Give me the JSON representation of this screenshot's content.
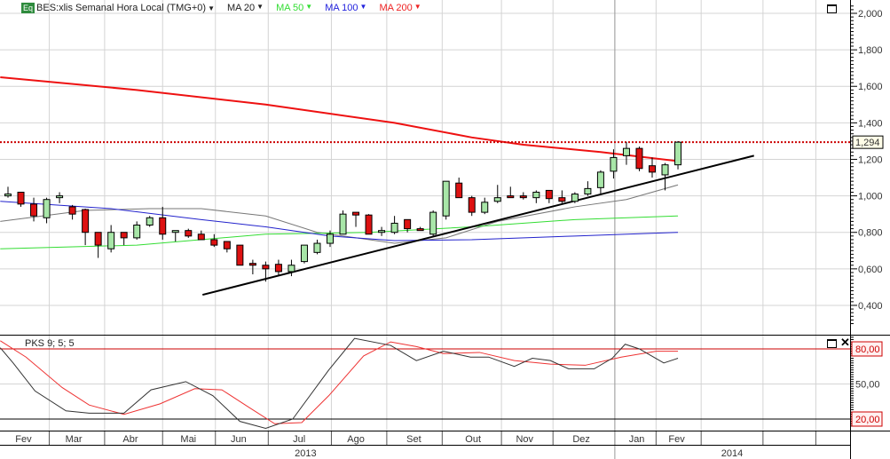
{
  "header": {
    "badge": "Eq",
    "instrument": "BES:xlis Semanal Hora Local (TMG+0)",
    "ma_labels": [
      {
        "label": "MA 20",
        "color": "#222222"
      },
      {
        "label": "MA 50",
        "color": "#33dd33"
      },
      {
        "label": "MA 100",
        "color": "#2222dd"
      },
      {
        "label": "MA 200",
        "color": "#ee2222"
      }
    ],
    "dropdown_glyph": "▼"
  },
  "indicator": {
    "label": "PKS 9; 5; 5"
  },
  "colors": {
    "up": "#a8e6a8",
    "down": "#dd1111",
    "ma20": "#777777",
    "ma50": "#33dd33",
    "ma100": "#2222cc",
    "ma200": "#ee1111",
    "trend": "#000000",
    "k_line": "#333333",
    "d_line": "#ee3333",
    "level": "#cc0000"
  },
  "chart_data": {
    "type": "candlestick",
    "title": "BES:xlis Semanal Hora Local (TMG+0)",
    "x_unit": "week index",
    "ylim": [
      0.3,
      2.07
    ],
    "y_ticks": [
      "0,400",
      "0,600",
      "0,800",
      "1,000",
      "1,200",
      "1,400",
      "1,600",
      "1,800",
      "2,000"
    ],
    "y_tick_values": [
      0.4,
      0.6,
      0.8,
      1.0,
      1.2,
      1.4,
      1.6,
      1.8,
      2.0
    ],
    "last_price": 1.294,
    "last_price_label": "1,294",
    "candles": [
      [
        1.0,
        1.05,
        0.99,
        1.01
      ],
      [
        1.02,
        1.02,
        0.94,
        0.955
      ],
      [
        0.955,
        0.99,
        0.86,
        0.89
      ],
      [
        0.88,
        0.99,
        0.85,
        0.98
      ],
      [
        0.99,
        1.02,
        0.96,
        1.0
      ],
      [
        0.94,
        0.95,
        0.87,
        0.9
      ],
      [
        0.925,
        0.93,
        0.73,
        0.8
      ],
      [
        0.8,
        0.8,
        0.66,
        0.73
      ],
      [
        0.71,
        0.84,
        0.69,
        0.8
      ],
      [
        0.8,
        0.8,
        0.73,
        0.77
      ],
      [
        0.77,
        0.86,
        0.76,
        0.84
      ],
      [
        0.84,
        0.89,
        0.83,
        0.88
      ],
      [
        0.88,
        0.94,
        0.76,
        0.79
      ],
      [
        0.8,
        0.81,
        0.75,
        0.81
      ],
      [
        0.81,
        0.82,
        0.77,
        0.78
      ],
      [
        0.79,
        0.81,
        0.76,
        0.76
      ],
      [
        0.76,
        0.79,
        0.72,
        0.73
      ],
      [
        0.75,
        0.75,
        0.69,
        0.71
      ],
      [
        0.73,
        0.73,
        0.62,
        0.62
      ],
      [
        0.63,
        0.65,
        0.57,
        0.62
      ],
      [
        0.62,
        0.64,
        0.53,
        0.6
      ],
      [
        0.625,
        0.65,
        0.565,
        0.585
      ],
      [
        0.585,
        0.65,
        0.56,
        0.62
      ],
      [
        0.64,
        0.73,
        0.63,
        0.73
      ],
      [
        0.69,
        0.76,
        0.68,
        0.74
      ],
      [
        0.74,
        0.81,
        0.72,
        0.79
      ],
      [
        0.79,
        0.92,
        0.79,
        0.9
      ],
      [
        0.91,
        0.91,
        0.83,
        0.895
      ],
      [
        0.895,
        0.9,
        0.79,
        0.79
      ],
      [
        0.8,
        0.83,
        0.78,
        0.81
      ],
      [
        0.8,
        0.89,
        0.79,
        0.85
      ],
      [
        0.87,
        0.87,
        0.8,
        0.82
      ],
      [
        0.82,
        0.83,
        0.81,
        0.81
      ],
      [
        0.79,
        0.92,
        0.78,
        0.91
      ],
      [
        0.89,
        1.08,
        0.87,
        1.08
      ],
      [
        1.07,
        1.1,
        0.99,
        0.99
      ],
      [
        0.99,
        1.0,
        0.89,
        0.91
      ],
      [
        0.91,
        0.99,
        0.9,
        0.965
      ],
      [
        0.97,
        1.06,
        0.96,
        0.99
      ],
      [
        1.0,
        1.05,
        0.99,
        0.99
      ],
      [
        1.0,
        1.02,
        0.98,
        0.99
      ],
      [
        0.99,
        1.03,
        0.96,
        1.02
      ],
      [
        1.03,
        1.03,
        0.96,
        0.985
      ],
      [
        0.99,
        1.03,
        0.96,
        0.97
      ],
      [
        0.97,
        1.02,
        0.96,
        1.01
      ],
      [
        1.01,
        1.08,
        1.0,
        1.04
      ],
      [
        1.045,
        1.14,
        1.01,
        1.13
      ],
      [
        1.135,
        1.255,
        1.095,
        1.21
      ],
      [
        1.22,
        1.295,
        1.17,
        1.26
      ],
      [
        1.26,
        1.27,
        1.135,
        1.15
      ],
      [
        1.165,
        1.21,
        1.1,
        1.13
      ],
      [
        1.115,
        1.18,
        1.03,
        1.17
      ],
      [
        1.17,
        1.3,
        1.145,
        1.294
      ]
    ],
    "series": [
      {
        "name": "MA 20",
        "points": [
          [
            -0.6,
            0.86
          ],
          [
            6,
            0.92
          ],
          [
            11,
            0.93
          ],
          [
            15,
            0.93
          ],
          [
            20,
            0.89
          ],
          [
            24,
            0.8
          ],
          [
            30,
            0.74
          ],
          [
            34,
            0.77
          ],
          [
            38,
            0.86
          ],
          [
            44,
            0.94
          ],
          [
            48,
            0.98
          ],
          [
            52,
            1.06
          ]
        ]
      },
      {
        "name": "MA 50",
        "points": [
          [
            -0.6,
            0.71
          ],
          [
            10,
            0.73
          ],
          [
            20,
            0.79
          ],
          [
            28,
            0.8
          ],
          [
            36,
            0.83
          ],
          [
            44,
            0.87
          ],
          [
            52,
            0.89
          ]
        ]
      },
      {
        "name": "MA 100",
        "points": [
          [
            -0.6,
            0.97
          ],
          [
            8,
            0.93
          ],
          [
            15,
            0.87
          ],
          [
            20,
            0.83
          ],
          [
            25,
            0.78
          ],
          [
            30,
            0.755
          ],
          [
            36,
            0.76
          ],
          [
            44,
            0.78
          ],
          [
            52,
            0.8
          ]
        ]
      },
      {
        "name": "MA 200",
        "points": [
          [
            -0.6,
            1.65
          ],
          [
            10,
            1.58
          ],
          [
            20,
            1.5
          ],
          [
            30,
            1.4
          ],
          [
            36,
            1.32
          ],
          [
            40,
            1.28
          ],
          [
            46,
            1.24
          ],
          [
            52,
            1.19
          ]
        ]
      },
      {
        "name": "Trendline",
        "points": [
          [
            15.1,
            0.458
          ],
          [
            57.9,
            1.22
          ]
        ]
      }
    ],
    "indicator": {
      "name": "PKS 9; 5; 5",
      "ylim": [
        12,
        92
      ],
      "y_ticks": [
        "20,00",
        "50,00",
        "80,00"
      ],
      "y_tick_values": [
        20,
        50,
        80
      ],
      "levels": [
        80,
        20
      ],
      "k": [
        [
          -0.6,
          81
        ],
        [
          0.4,
          68
        ],
        [
          2.1,
          44
        ],
        [
          4.5,
          27
        ],
        [
          6.3,
          25
        ],
        [
          9,
          25
        ],
        [
          11.1,
          45
        ],
        [
          13.8,
          52
        ],
        [
          15.9,
          40
        ],
        [
          18,
          18
        ],
        [
          20,
          12
        ],
        [
          22.1,
          20
        ],
        [
          24.9,
          62
        ],
        [
          26.9,
          89
        ],
        [
          29.7,
          83
        ],
        [
          31.7,
          70
        ],
        [
          33.8,
          78
        ],
        [
          35.9,
          73
        ],
        [
          37.3,
          73
        ],
        [
          39.3,
          65
        ],
        [
          40.7,
          72
        ],
        [
          42.1,
          70
        ],
        [
          43.5,
          63
        ],
        [
          45.5,
          63
        ],
        [
          46.9,
          72
        ],
        [
          47.9,
          84
        ],
        [
          49,
          80
        ],
        [
          50.9,
          68
        ],
        [
          52,
          72
        ]
      ],
      "d": [
        [
          -0.6,
          87
        ],
        [
          1.4,
          73
        ],
        [
          4.2,
          47
        ],
        [
          6.3,
          32
        ],
        [
          9,
          24
        ],
        [
          11.8,
          33
        ],
        [
          14.5,
          46
        ],
        [
          16.6,
          45
        ],
        [
          18.7,
          30
        ],
        [
          20.7,
          16
        ],
        [
          22.8,
          17
        ],
        [
          24.9,
          40
        ],
        [
          27.6,
          74
        ],
        [
          29.7,
          86
        ],
        [
          31.7,
          82
        ],
        [
          33.8,
          76
        ],
        [
          36.6,
          77
        ],
        [
          39.3,
          70
        ],
        [
          42.1,
          67
        ],
        [
          44.8,
          66
        ],
        [
          47.6,
          73
        ],
        [
          50.3,
          78
        ],
        [
          52,
          78
        ]
      ]
    },
    "months": [
      {
        "label": "Fev",
        "at": 1.2
      },
      {
        "label": "Mar",
        "at": 5.1
      },
      {
        "label": "Abr",
        "at": 9.5
      },
      {
        "label": "Mai",
        "at": 14
      },
      {
        "label": "Jun",
        "at": 17.9
      },
      {
        "label": "Jul",
        "at": 22.6
      },
      {
        "label": "Ago",
        "at": 27
      },
      {
        "label": "Set",
        "at": 31.5
      },
      {
        "label": "Out",
        "at": 36.1
      },
      {
        "label": "Nov",
        "at": 40.1
      },
      {
        "label": "Dez",
        "at": 44.5
      },
      {
        "label": "Jan",
        "at": 48.8
      },
      {
        "label": "Fev",
        "at": 51.9
      }
    ],
    "month_boundaries": [
      3.2,
      7.5,
      12,
      16.1,
      20.2,
      25.1,
      29.4,
      33.7,
      38.3,
      42.3,
      47.1,
      50.3,
      53.8,
      58.6,
      62.7
    ],
    "years": [
      {
        "label": "2013",
        "at": 23.1
      },
      {
        "label": "2014",
        "at": 56.2
      }
    ],
    "year_boundary": 47.1
  }
}
